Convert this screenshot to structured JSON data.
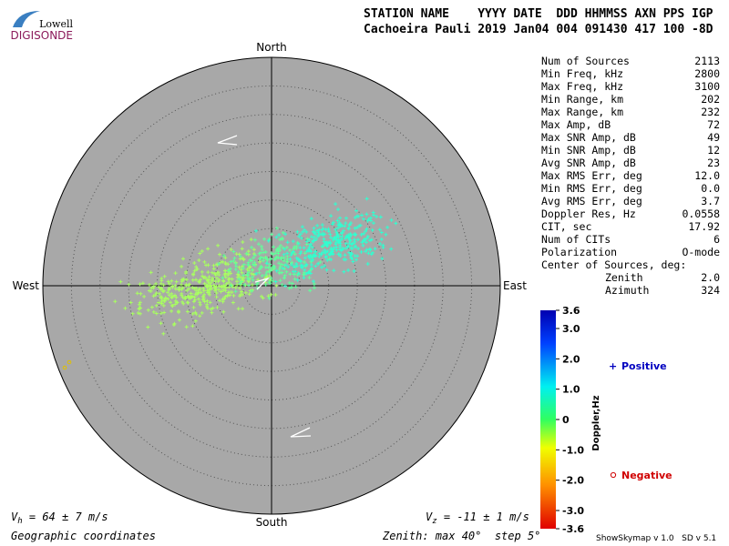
{
  "header": {
    "logo_top": "Lowell",
    "logo_bottom": "DIGISONDE",
    "row1": "STATION NAME    YYYY DATE  DDD HHMMSS AXN PPS IGP",
    "row2": "Cachoeira Pauli 2019 Jan04 004 091430 417 100 -8D"
  },
  "stats": {
    "rows": [
      {
        "label": "Num of Sources",
        "value": "2113"
      },
      {
        "label": "Min Freq, kHz",
        "value": "2800"
      },
      {
        "label": "Max Freq, kHz",
        "value": "3100"
      },
      {
        "label": "Min Range, km",
        "value": "202"
      },
      {
        "label": "Max Range, km",
        "value": "232"
      },
      {
        "label": "Max Amp, dB",
        "value": "72"
      },
      {
        "label": "Max SNR Amp, dB",
        "value": "49"
      },
      {
        "label": "Min SNR Amp, dB",
        "value": "12"
      },
      {
        "label": "Avg SNR Amp, dB",
        "value": "23"
      },
      {
        "label": "Max RMS Err, deg",
        "value": "12.0"
      },
      {
        "label": "Min RMS Err, deg",
        "value": "0.0"
      },
      {
        "label": "Avg RMS Err, deg",
        "value": "3.7"
      },
      {
        "label": "Doppler Res, Hz",
        "value": "0.0558"
      },
      {
        "label": "CIT, sec",
        "value": "17.92"
      },
      {
        "label": "Num of CITs",
        "value": "6"
      },
      {
        "label": "Polarization",
        "value": "O-mode"
      }
    ],
    "center_heading": "Center of Sources, deg:",
    "center_rows": [
      {
        "label": "Zenith",
        "value": "2.0"
      },
      {
        "label": "Azimuth",
        "value": "324"
      }
    ]
  },
  "compass": {
    "north": "North",
    "south": "South",
    "east": "East",
    "west": "West"
  },
  "colorbar": {
    "title": "Doppler,Hz",
    "lim": [
      -3.6,
      3.6
    ],
    "ticks": [
      {
        "value": 3.6,
        "label": "3.6"
      },
      {
        "value": 3.0,
        "label": "3.0"
      },
      {
        "value": 2.0,
        "label": "2.0"
      },
      {
        "value": 1.0,
        "label": "1.0"
      },
      0,
      {
        "value": -1.0,
        "label": "-1.0"
      },
      {
        "value": -2.0,
        "label": "-2.0"
      },
      {
        "value": -3.0,
        "label": "-3.0"
      },
      {
        "value": -3.6,
        "label": "-3.6"
      }
    ]
  },
  "legend": {
    "positive": "Positive",
    "negative": "Negative"
  },
  "footer": {
    "vh_symbol": "V",
    "vh_sub": "h",
    "vh_text": " = 64 ± 7 m/s",
    "vz_symbol": "V",
    "vz_sub": "z",
    "vz_text": " = -11 ± 1 m/s",
    "coordinates": "Geographic coordinates",
    "zenith": "Zenith: max 40°  step 5°",
    "version": "ShowSkymap v 1.0   SD v 5.1"
  }
}
